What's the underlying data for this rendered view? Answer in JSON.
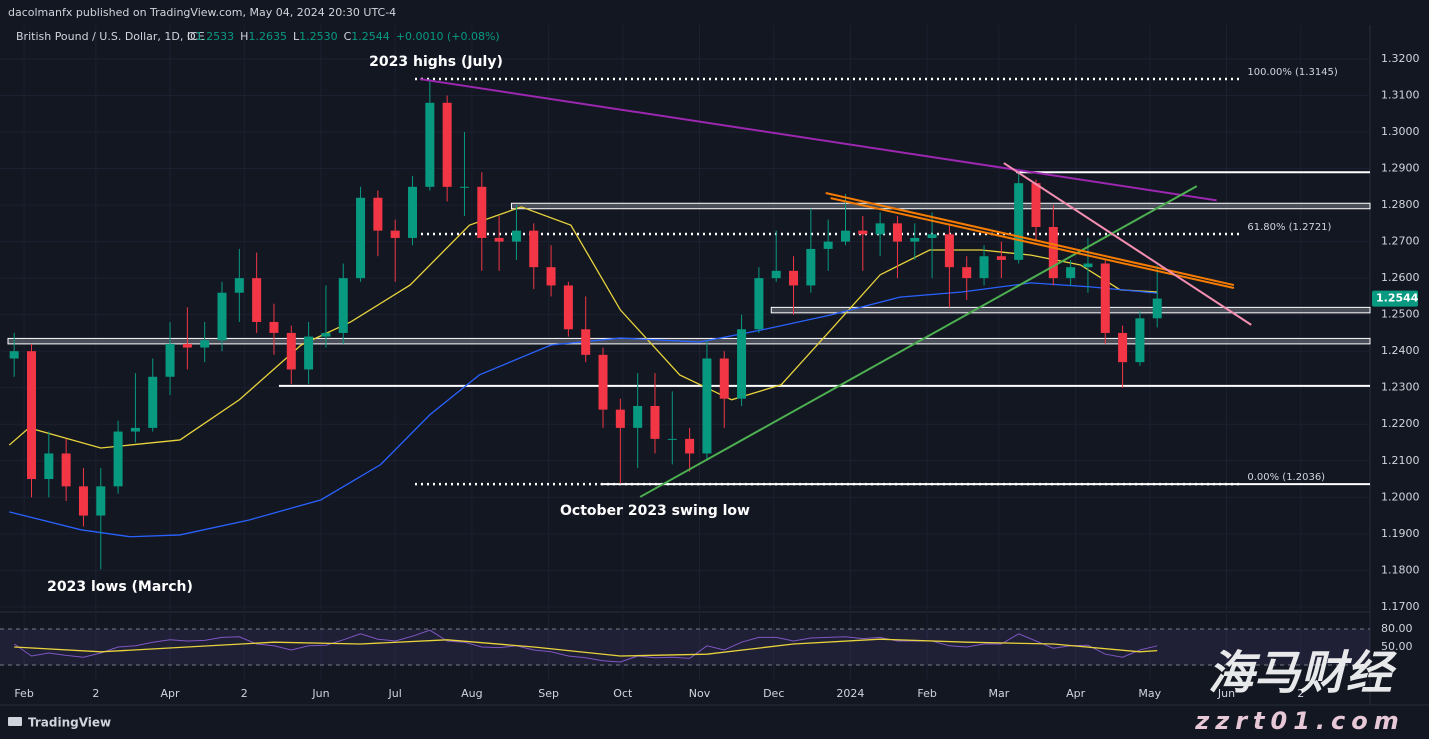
{
  "header": {
    "publisher": "dacolmanfx published on TradingView.com, May 04, 2024 20:30 UTC-4"
  },
  "footer": {
    "brand": "TradingView"
  },
  "watermark": {
    "title": "海马财经",
    "site": "zzrt01.com"
  },
  "chart_data": {
    "type": "candlestick",
    "title": "British Pound / U.S. Dollar, 1D, ICE",
    "ohlc_legend": [
      {
        "label": "O",
        "value": "1.2533"
      },
      {
        "label": "H",
        "value": "1.2635"
      },
      {
        "label": "L",
        "value": "1.2530"
      },
      {
        "label": "C",
        "value": "1.2544"
      }
    ],
    "change": "+0.0010 (+0.08%)",
    "up_color": "#089981",
    "down_color": "#f23645",
    "x": [
      -4,
      3,
      10,
      17,
      24,
      31,
      38,
      45,
      52,
      59,
      66,
      73,
      80,
      87,
      94,
      101,
      108,
      115,
      122,
      129,
      136,
      143,
      150,
      157,
      164,
      171,
      178,
      185,
      192,
      199,
      206,
      213,
      220,
      227,
      234,
      241,
      248,
      255,
      262,
      269,
      276,
      283,
      290,
      297,
      304,
      311,
      318,
      325,
      332,
      339,
      346,
      353,
      360,
      367,
      374,
      381,
      388,
      395,
      402,
      409,
      416,
      423,
      430,
      437,
      444,
      451,
      458
    ],
    "open": [
      1.238,
      1.24,
      1.205,
      1.212,
      1.203,
      1.195,
      1.203,
      1.218,
      1.219,
      1.233,
      1.242,
      1.241,
      1.243,
      1.256,
      1.26,
      1.248,
      1.245,
      1.235,
      1.244,
      1.245,
      1.26,
      1.282,
      1.273,
      1.271,
      1.285,
      1.308,
      1.285,
      1.285,
      1.271,
      1.27,
      1.273,
      1.263,
      1.258,
      1.246,
      1.239,
      1.224,
      1.219,
      1.225,
      1.216,
      1.216,
      1.212,
      1.238,
      1.227,
      1.246,
      1.26,
      1.262,
      1.258,
      1.268,
      1.27,
      1.273,
      1.272,
      1.275,
      1.27,
      1.271,
      1.272,
      1.263,
      1.26,
      1.266,
      1.265,
      1.286,
      1.274,
      1.26,
      1.263,
      1.264,
      1.245,
      1.237,
      1.249
    ],
    "high": [
      1.245,
      1.242,
      1.218,
      1.216,
      1.208,
      1.208,
      1.221,
      1.234,
      1.238,
      1.248,
      1.252,
      1.248,
      1.259,
      1.268,
      1.267,
      1.253,
      1.247,
      1.248,
      1.258,
      1.264,
      1.285,
      1.284,
      1.276,
      1.288,
      1.3145,
      1.31,
      1.3,
      1.289,
      1.277,
      1.28,
      1.275,
      1.269,
      1.259,
      1.255,
      1.241,
      1.227,
      1.234,
      1.234,
      1.229,
      1.219,
      1.243,
      1.24,
      1.25,
      1.263,
      1.273,
      1.266,
      1.279,
      1.276,
      1.283,
      1.277,
      1.278,
      1.277,
      1.275,
      1.278,
      1.275,
      1.266,
      1.269,
      1.27,
      1.2894,
      1.287,
      1.28,
      1.265,
      1.271,
      1.265,
      1.247,
      1.251,
      1.2635
    ],
    "low": [
      1.233,
      1.2,
      1.2,
      1.199,
      1.192,
      1.1803,
      1.201,
      1.215,
      1.218,
      1.228,
      1.235,
      1.237,
      1.24,
      1.248,
      1.245,
      1.239,
      1.231,
      1.231,
      1.241,
      1.242,
      1.259,
      1.266,
      1.259,
      1.269,
      1.284,
      1.281,
      1.277,
      1.262,
      1.262,
      1.265,
      1.257,
      1.255,
      1.244,
      1.237,
      1.219,
      1.2037,
      1.208,
      1.212,
      1.209,
      1.207,
      1.21,
      1.219,
      1.225,
      1.245,
      1.259,
      1.25,
      1.256,
      1.262,
      1.269,
      1.262,
      1.266,
      1.26,
      1.265,
      1.26,
      1.252,
      1.254,
      1.258,
      1.26,
      1.264,
      1.27,
      1.258,
      1.258,
      1.256,
      1.242,
      1.23,
      1.236,
      1.2465
    ],
    "close": [
      1.24,
      1.205,
      1.212,
      1.203,
      1.195,
      1.203,
      1.218,
      1.219,
      1.233,
      1.242,
      1.241,
      1.243,
      1.256,
      1.26,
      1.248,
      1.245,
      1.235,
      1.244,
      1.245,
      1.26,
      1.282,
      1.273,
      1.271,
      1.285,
      1.308,
      1.285,
      1.285,
      1.271,
      1.27,
      1.273,
      1.263,
      1.258,
      1.246,
      1.239,
      1.224,
      1.219,
      1.225,
      1.216,
      1.216,
      1.212,
      1.238,
      1.227,
      1.246,
      1.26,
      1.262,
      1.258,
      1.268,
      1.27,
      1.273,
      1.272,
      1.275,
      1.27,
      1.271,
      1.272,
      1.263,
      1.26,
      1.266,
      1.265,
      1.286,
      1.274,
      1.26,
      1.263,
      1.264,
      1.245,
      1.237,
      1.249,
      1.2544
    ],
    "lines": [
      {
        "color": "#e8d33c",
        "x": [
          -6,
          2,
          31,
          63,
          87,
          112,
          132,
          156,
          180,
          201,
          221,
          241,
          265,
          286,
          306,
          326,
          346,
          366,
          387,
          407,
          427,
          443,
          458
        ],
        "values": [
          1.2143,
          1.219,
          1.2135,
          1.2157,
          1.2267,
          1.2417,
          1.248,
          1.2581,
          1.2745,
          1.2795,
          1.2745,
          1.2513,
          1.2335,
          1.2267,
          1.2308,
          1.2458,
          1.2609,
          1.2677,
          1.2677,
          1.2663,
          1.2636,
          1.2568,
          1.2562
        ]
      },
      {
        "color": "#2962ff",
        "x": [
          -6,
          23,
          43,
          63,
          91,
          120,
          144,
          164,
          184,
          213,
          241,
          273,
          298,
          326,
          354,
          379,
          407,
          431,
          458
        ],
        "values": [
          1.196,
          1.1911,
          1.1892,
          1.1897,
          1.1938,
          1.1993,
          1.2089,
          1.2226,
          1.2335,
          1.2417,
          1.2436,
          1.2425,
          1.2458,
          1.2499,
          1.2548,
          1.2562,
          1.2587,
          1.2576,
          1.2559
        ]
      }
    ],
    "last_price_label": "1.2544",
    "xlim": [
      -6.5,
      544
    ],
    "xticks": [
      {
        "value": 0,
        "label": "Feb"
      },
      {
        "value": 29,
        "label": "2"
      },
      {
        "value": 59,
        "label": "Apr"
      },
      {
        "value": 89,
        "label": "2"
      },
      {
        "value": 120,
        "label": "Jun"
      },
      {
        "value": 150,
        "label": "Jul"
      },
      {
        "value": 181,
        "label": "Aug"
      },
      {
        "value": 212,
        "label": "Sep"
      },
      {
        "value": 242,
        "label": "Oct"
      },
      {
        "value": 273,
        "label": "Nov"
      },
      {
        "value": 303,
        "label": "Dec"
      },
      {
        "value": 334,
        "label": "2024"
      },
      {
        "value": 365,
        "label": "Feb"
      },
      {
        "value": 394,
        "label": "Mar"
      },
      {
        "value": 425,
        "label": "Apr"
      },
      {
        "value": 455,
        "label": "May"
      },
      {
        "value": 486,
        "label": "Jun"
      },
      {
        "value": 516,
        "label": "2"
      }
    ],
    "ylim": [
      1.1686,
      1.3293
    ],
    "yticks": [
      {
        "value": 1.17,
        "label": "1.1700"
      },
      {
        "value": 1.18,
        "label": "1.1800"
      },
      {
        "value": 1.19,
        "label": "1.1900"
      },
      {
        "value": 1.2,
        "label": "1.2000"
      },
      {
        "value": 1.21,
        "label": "1.2100"
      },
      {
        "value": 1.22,
        "label": "1.2200"
      },
      {
        "value": 1.23,
        "label": "1.2300"
      },
      {
        "value": 1.24,
        "label": "1.2400"
      },
      {
        "value": 1.25,
        "label": "1.2500"
      },
      {
        "value": 1.26,
        "label": "1.2600"
      },
      {
        "value": 1.27,
        "label": "1.2700"
      },
      {
        "value": 1.28,
        "label": "1.2800"
      },
      {
        "value": 1.29,
        "label": "1.2900"
      },
      {
        "value": 1.3,
        "label": "1.3000"
      },
      {
        "value": 1.31,
        "label": "1.3100"
      },
      {
        "value": 1.32,
        "label": "1.3200"
      }
    ],
    "grid": true,
    "levels": [
      {
        "x": [
          401,
          544
        ],
        "values": [
          1.289
        ]
      },
      {
        "x": [
          197,
          544
        ],
        "values": [
          1.279,
          1.2805
        ]
      },
      {
        "x": [
          302,
          544
        ],
        "values": [
          1.2505,
          1.252
        ]
      },
      {
        "x": [
          -6.5,
          544
        ],
        "values": [
          1.242,
          1.2435
        ]
      },
      {
        "x": [
          103,
          544
        ],
        "values": [
          1.2305
        ]
      },
      {
        "x": [
          233,
          544
        ],
        "values": [
          1.2036
        ]
      }
    ],
    "fib": [
      {
        "label": "100.00% (1.3145)",
        "value": 1.3145
      },
      {
        "label": "61.80% (1.2721)",
        "value": 1.2721
      },
      {
        "label": "0.00% (1.2036)",
        "value": 1.2036
      }
    ],
    "fib_x": [
      158,
      492
    ],
    "trendlines": [
      {
        "color": "#9c27b0",
        "x": [
          160,
          482
        ],
        "values": [
          1.3145,
          1.2813
        ]
      },
      {
        "color": "#4caf50",
        "x": [
          249,
          474
        ],
        "values": [
          1.2001,
          1.2852
        ]
      },
      {
        "color": "#f57c00",
        "x": [
          324,
          489
        ],
        "values": [
          1.2833,
          1.2581
        ]
      },
      {
        "color": "#f57c00",
        "x": [
          326,
          489
        ],
        "values": [
          1.2819,
          1.2573
        ]
      },
      {
        "color": "#f48fb1",
        "x": [
          396,
          496
        ],
        "values": [
          1.2915,
          1.2472
        ]
      }
    ],
    "annotations": [
      "2023 highs (July)",
      "October 2023 swing low",
      "2023 lows (March)"
    ],
    "rsi": {
      "ylim": [
        0,
        100
      ],
      "yticks": [
        {
          "value": 80,
          "label": "80.00"
        },
        {
          "value": 50,
          "label": "50.00"
        }
      ],
      "bands": [
        20,
        80
      ],
      "color": "#7e57c2",
      "values": [
        55,
        35,
        40,
        36,
        33,
        40,
        50,
        52,
        58,
        62,
        60,
        61,
        66,
        67,
        55,
        52,
        45,
        52,
        53,
        62,
        72,
        63,
        60,
        68,
        78,
        60,
        58,
        50,
        49,
        52,
        45,
        42,
        35,
        32,
        27,
        25,
        35,
        32,
        33,
        31,
        52,
        45,
        58,
        66,
        66,
        60,
        65,
        66,
        67,
        64,
        66,
        60,
        60,
        60,
        52,
        50,
        55,
        55,
        72,
        60,
        48,
        52,
        53,
        38,
        33,
        45,
        52
      ],
      "ma": {
        "color": "#e8d33c",
        "x": [
          -4,
          31,
          66,
          101,
          136,
          171,
          206,
          241,
          276,
          311,
          346,
          381,
          416,
          451,
          458
        ],
        "values": [
          50,
          42,
          50,
          58,
          55,
          62,
          50,
          35,
          38,
          55,
          63,
          58,
          55,
          42,
          44
        ]
      }
    }
  }
}
